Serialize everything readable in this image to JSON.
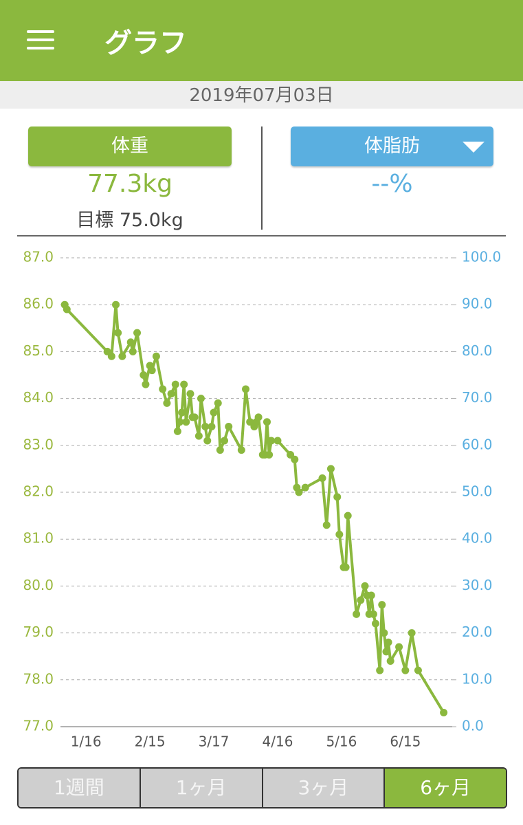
{
  "header": {
    "title": "グラフ"
  },
  "date": "2019年07月03日",
  "left_panel": {
    "button": "体重",
    "value": "77.3kg",
    "goal": "目標 75.0kg"
  },
  "right_panel": {
    "button": "体脂肪",
    "value": "--%"
  },
  "chart_data": {
    "type": "line",
    "x": [
      6,
      7,
      26,
      28,
      30,
      31,
      33,
      37,
      38,
      40,
      43,
      44,
      46,
      47,
      49,
      52,
      54,
      56,
      58,
      59,
      60,
      61,
      62,
      63,
      65,
      66,
      67,
      69,
      70,
      72,
      73,
      75,
      76,
      78,
      79,
      81,
      83,
      89,
      91,
      93,
      95,
      96,
      97,
      99,
      100,
      101,
      102,
      103,
      106,
      112,
      114,
      115,
      116,
      119,
      127,
      129,
      131,
      134,
      135,
      137,
      138,
      139,
      143,
      145,
      147,
      148,
      149,
      150,
      151,
      152,
      154,
      155,
      156,
      157,
      158,
      159,
      163,
      166,
      169,
      172,
      184
    ],
    "values": [
      86.0,
      85.9,
      85.0,
      84.9,
      86.0,
      85.4,
      84.9,
      85.2,
      85.0,
      85.4,
      84.5,
      84.3,
      84.7,
      84.6,
      84.9,
      84.2,
      83.9,
      84.1,
      84.3,
      83.3,
      83.5,
      83.7,
      84.3,
      83.5,
      84.1,
      83.6,
      83.6,
      83.2,
      84.0,
      83.4,
      83.1,
      83.4,
      83.7,
      83.9,
      82.9,
      83.1,
      83.4,
      82.9,
      84.2,
      83.5,
      83.4,
      83.5,
      83.6,
      82.8,
      82.8,
      83.5,
      82.8,
      83.1,
      83.1,
      82.8,
      82.7,
      82.1,
      82.0,
      82.1,
      82.3,
      81.3,
      82.5,
      81.9,
      81.1,
      80.4,
      80.4,
      81.5,
      79.4,
      79.7,
      80.0,
      79.8,
      79.4,
      79.8,
      79.4,
      79.2,
      78.2,
      79.6,
      79.0,
      78.6,
      78.8,
      78.4,
      78.7,
      78.2,
      79.0,
      78.2,
      77.3
    ],
    "color": "#8bb83e",
    "xlim": [
      4,
      188
    ],
    "xticks": [
      {
        "value": 16,
        "label": "1/16"
      },
      {
        "value": 46,
        "label": "2/15"
      },
      {
        "value": 76,
        "label": "3/17"
      },
      {
        "value": 106,
        "label": "4/16"
      },
      {
        "value": 136,
        "label": "5/16"
      },
      {
        "value": 166,
        "label": "6/15"
      }
    ],
    "ylim": [
      77,
      87
    ],
    "yticks": [
      {
        "value": 77,
        "label": "77.0"
      },
      {
        "value": 78,
        "label": "78.0"
      },
      {
        "value": 79,
        "label": "79.0"
      },
      {
        "value": 80,
        "label": "80.0"
      },
      {
        "value": 81,
        "label": "81.0"
      },
      {
        "value": 82,
        "label": "82.0"
      },
      {
        "value": 83,
        "label": "83.0"
      },
      {
        "value": 84,
        "label": "84.0"
      },
      {
        "value": 85,
        "label": "85.0"
      },
      {
        "value": 86,
        "label": "86.0"
      },
      {
        "value": 87,
        "label": "87.0"
      }
    ],
    "y2lim": [
      0,
      100
    ],
    "y2ticks": [
      {
        "value": 0,
        "label": "0.0"
      },
      {
        "value": 10,
        "label": "10.0"
      },
      {
        "value": 20,
        "label": "20.0"
      },
      {
        "value": 30,
        "label": "30.0"
      },
      {
        "value": 40,
        "label": "40.0"
      },
      {
        "value": 50,
        "label": "50.0"
      },
      {
        "value": 60,
        "label": "60.0"
      },
      {
        "value": 70,
        "label": "70.0"
      },
      {
        "value": 80,
        "label": "80.0"
      },
      {
        "value": 90,
        "label": "90.0"
      },
      {
        "value": 100,
        "label": "100.0"
      }
    ],
    "ytick_color": "#9ab83e",
    "y2tick_color": "#5aafe0",
    "grid": true
  },
  "period_tabs": {
    "options": [
      "1週間",
      "1ヶ月",
      "3ヶ月",
      "6ヶ月"
    ],
    "selected": 3
  }
}
